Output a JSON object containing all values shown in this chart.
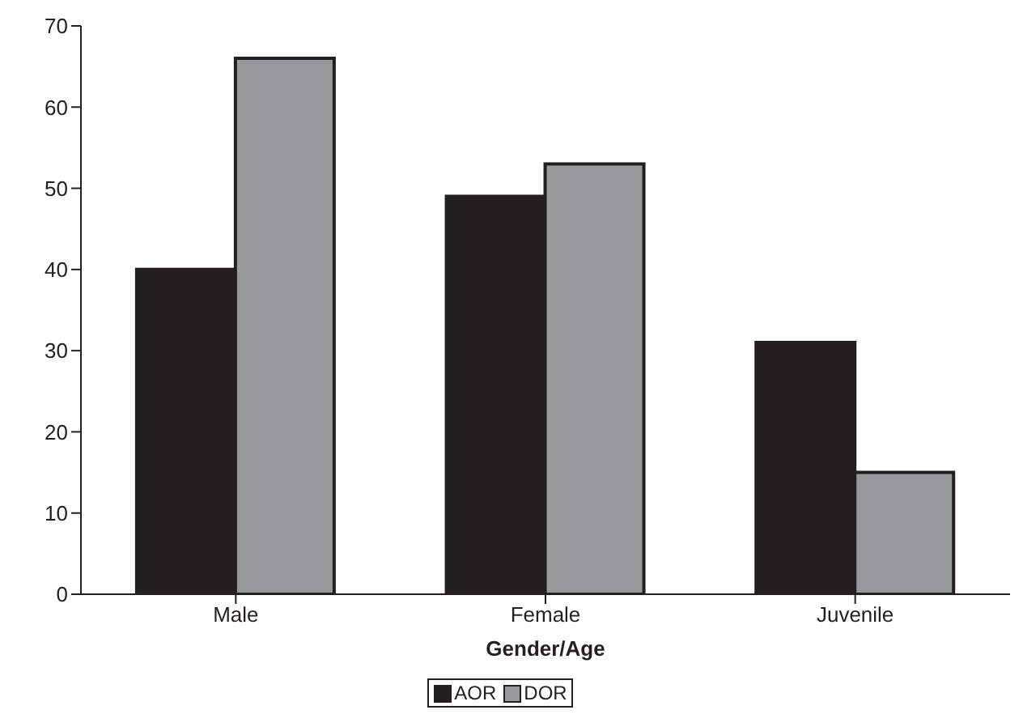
{
  "chart_data": {
    "type": "bar",
    "xlabel": "Gender/Age",
    "categories": [
      "Male",
      "Female",
      "Juvenile"
    ],
    "series": [
      {
        "name": "AOR",
        "color": "#231f20",
        "values": [
          40,
          49,
          31
        ]
      },
      {
        "name": "DOR",
        "color": "#98999b",
        "values": [
          66,
          53,
          15
        ]
      }
    ],
    "ylim": [
      0,
      70
    ],
    "yticks": [
      0,
      10,
      20,
      30,
      40,
      50,
      60,
      70
    ],
    "grid": false,
    "legend": "bottom"
  }
}
